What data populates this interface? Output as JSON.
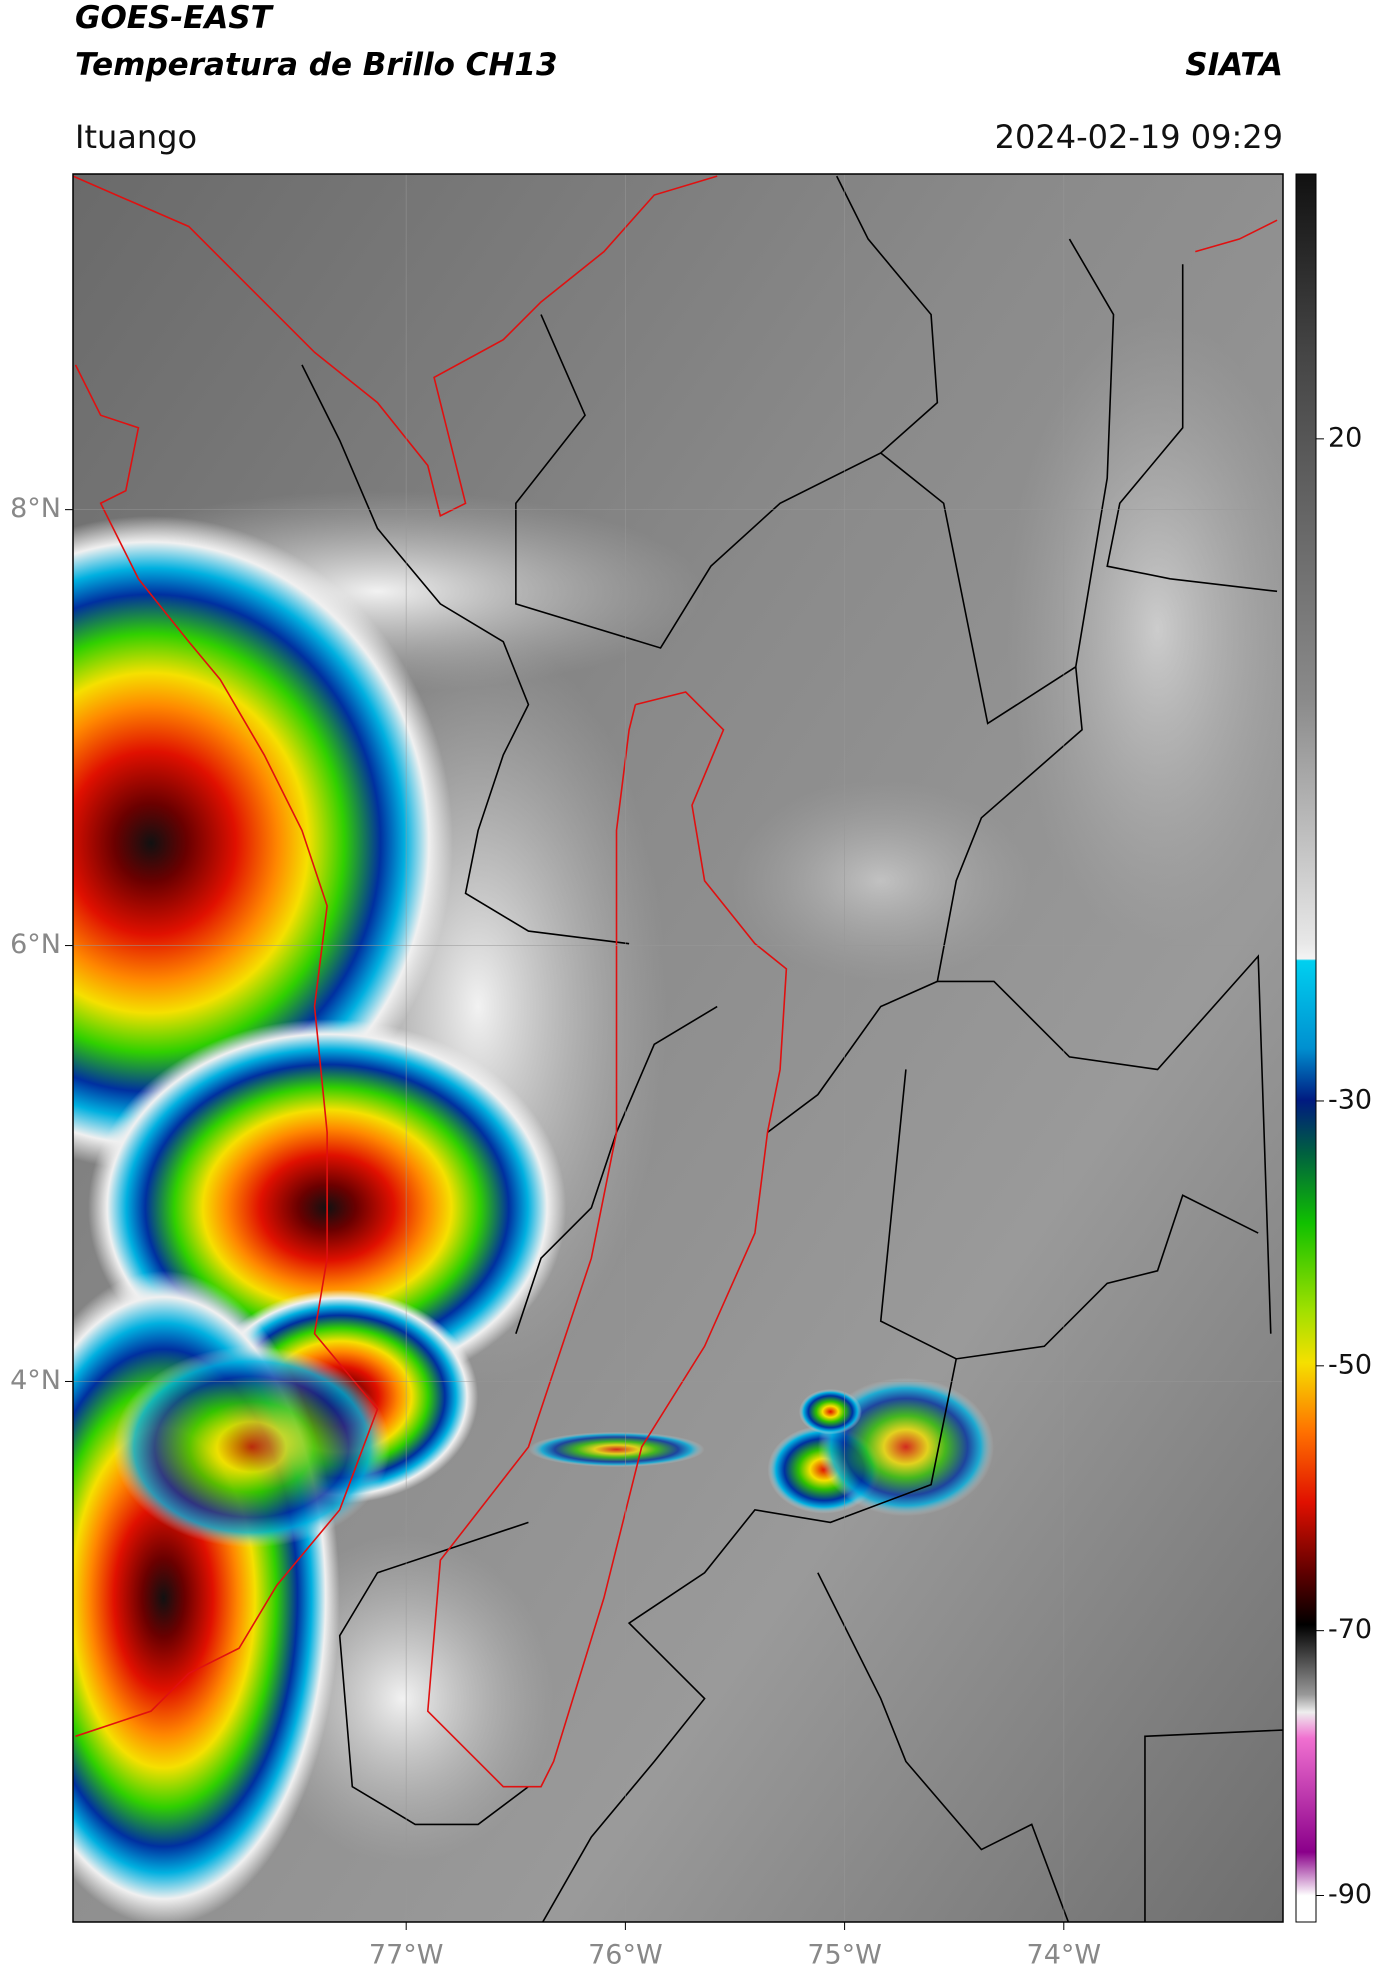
{
  "header": {
    "satellite": "GOES-EAST",
    "product": "Temperatura de Brillo CH13",
    "institution": "SIATA",
    "location": "Ituango",
    "datetime": "2024-02-19 09:29"
  },
  "map": {
    "xlim": [
      -78.52,
      -73.0
    ],
    "ylim": [
      1.52,
      9.54
    ],
    "xticks": [
      {
        "value": -77,
        "label": "77°W"
      },
      {
        "value": -76,
        "label": "76°W"
      },
      {
        "value": -75,
        "label": "75°W"
      },
      {
        "value": -74,
        "label": "74°W"
      }
    ],
    "yticks": [
      {
        "value": 8,
        "label": "8°N"
      },
      {
        "value": 6,
        "label": "6°N"
      },
      {
        "value": 4,
        "label": "4°N"
      }
    ],
    "grid": true
  },
  "colorbar": {
    "lim": [
      -92,
      40
    ],
    "ticks": [
      20,
      -30,
      -50,
      -70,
      -90
    ]
  }
}
